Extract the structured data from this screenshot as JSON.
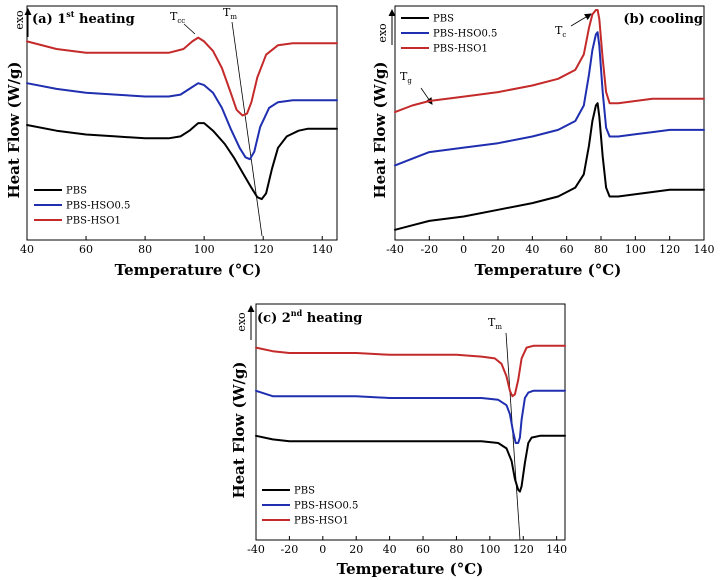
{
  "chart_data": [
    {
      "type": "line",
      "title": "(a) 1st heating",
      "title_main": "(a) 1",
      "title_sup": "st",
      "title_rest": " heating",
      "xlabel": "Temperature (°C)",
      "ylabel": "Heat Flow (W/g)",
      "exo_label": "exo",
      "xlim": [
        40,
        145
      ],
      "xticks": [
        40,
        60,
        80,
        100,
        120,
        140
      ],
      "xtick_labels": [
        "40",
        "60",
        "80",
        "100",
        "120",
        "140"
      ],
      "ylim": [
        0,
        1
      ],
      "legend_position": "bottom-left",
      "series": [
        {
          "name": "PBS",
          "color": "#000000",
          "x": [
            40,
            50,
            60,
            70,
            80,
            88,
            92,
            95,
            98,
            100,
            103,
            107,
            110,
            113,
            116,
            118,
            119.5,
            121,
            123,
            125,
            128,
            132,
            135,
            140,
            145
          ],
          "y": [
            0.5,
            0.47,
            0.45,
            0.44,
            0.43,
            0.43,
            0.44,
            0.47,
            0.51,
            0.51,
            0.47,
            0.4,
            0.33,
            0.25,
            0.17,
            0.12,
            0.11,
            0.14,
            0.27,
            0.38,
            0.44,
            0.47,
            0.48,
            0.48,
            0.48
          ]
        },
        {
          "name": "PBS-HSO0.5",
          "color": "#1f2fb0",
          "x": [
            40,
            50,
            60,
            70,
            80,
            88,
            92,
            95,
            98,
            100,
            103,
            106,
            109,
            112,
            114,
            115.5,
            117,
            119,
            122,
            125,
            130,
            135,
            140,
            145
          ],
          "y": [
            0.72,
            0.69,
            0.67,
            0.66,
            0.65,
            0.65,
            0.66,
            0.69,
            0.72,
            0.71,
            0.67,
            0.59,
            0.48,
            0.38,
            0.33,
            0.32,
            0.36,
            0.49,
            0.59,
            0.62,
            0.63,
            0.63,
            0.63,
            0.63
          ]
        },
        {
          "name": "PBS-HSO1",
          "color": "#c42a2a",
          "x": [
            40,
            50,
            60,
            70,
            80,
            88,
            93,
            96,
            98,
            100,
            103,
            106,
            109,
            111,
            113,
            114.5,
            116,
            118,
            121,
            125,
            130,
            135,
            140,
            145
          ],
          "y": [
            0.94,
            0.9,
            0.88,
            0.88,
            0.88,
            0.88,
            0.9,
            0.94,
            0.96,
            0.94,
            0.89,
            0.8,
            0.67,
            0.58,
            0.55,
            0.56,
            0.62,
            0.75,
            0.87,
            0.92,
            0.93,
            0.93,
            0.93,
            0.93
          ]
        }
      ],
      "annotations": [
        {
          "label": "T",
          "sub": "cc"
        },
        {
          "label": "T",
          "sub": "m"
        }
      ]
    },
    {
      "type": "line",
      "title": "(b) cooling",
      "xlabel": "Temperature (°C)",
      "ylabel": "Heat Flow (W/g)",
      "exo_label": "exo",
      "xlim": [
        -40,
        140
      ],
      "xticks": [
        -40,
        -20,
        0,
        20,
        40,
        60,
        80,
        100,
        120,
        140
      ],
      "xtick_labels": [
        "-40",
        "-20",
        "0",
        "20",
        "40",
        "60",
        "80",
        "100",
        "120",
        "140"
      ],
      "ylim": [
        0,
        1
      ],
      "legend_position": "top-left",
      "series": [
        {
          "name": "PBS",
          "color": "#000000",
          "x": [
            -40,
            -30,
            -20,
            0,
            20,
            40,
            55,
            65,
            70,
            73,
            75,
            77,
            78,
            79,
            81,
            83,
            85,
            90,
            100,
            110,
            120,
            130,
            140
          ],
          "y": [
            0.01,
            0.03,
            0.05,
            0.07,
            0.1,
            0.13,
            0.16,
            0.2,
            0.26,
            0.39,
            0.5,
            0.57,
            0.58,
            0.52,
            0.34,
            0.2,
            0.16,
            0.16,
            0.17,
            0.18,
            0.19,
            0.19,
            0.19
          ]
        },
        {
          "name": "PBS-HSO0.5",
          "color": "#1f2fb0",
          "x": [
            -40,
            -30,
            -20,
            0,
            20,
            40,
            55,
            65,
            70,
            73,
            75,
            77,
            78,
            79,
            81,
            83,
            85,
            90,
            100,
            110,
            120,
            130,
            140
          ],
          "y": [
            0.3,
            0.33,
            0.36,
            0.38,
            0.4,
            0.43,
            0.46,
            0.5,
            0.57,
            0.71,
            0.82,
            0.89,
            0.9,
            0.84,
            0.63,
            0.47,
            0.43,
            0.43,
            0.44,
            0.45,
            0.46,
            0.46,
            0.46
          ]
        },
        {
          "name": "PBS-HSO1",
          "color": "#c42a2a",
          "x": [
            -40,
            -30,
            -20,
            0,
            20,
            40,
            55,
            65,
            70,
            73,
            75,
            77,
            78,
            79,
            81,
            83,
            85,
            90,
            100,
            110,
            120,
            130,
            140
          ],
          "y": [
            0.54,
            0.57,
            0.59,
            0.61,
            0.63,
            0.66,
            0.69,
            0.73,
            0.8,
            0.92,
            0.98,
            1.0,
            1.0,
            0.96,
            0.78,
            0.63,
            0.58,
            0.58,
            0.59,
            0.6,
            0.6,
            0.6,
            0.6
          ]
        }
      ],
      "annotations": [
        {
          "label": "T",
          "sub": "c"
        },
        {
          "label": "T",
          "sub": "g"
        }
      ]
    },
    {
      "type": "line",
      "title": "(c) 2nd heating",
      "title_main": "(c) 2",
      "title_sup": "nd",
      "title_rest": " heating",
      "xlabel": "Temperature (°C)",
      "ylabel": "Heat Flow (W/g)",
      "exo_label": "exo",
      "xlim": [
        -40,
        145
      ],
      "xticks": [
        -40,
        -20,
        0,
        20,
        40,
        60,
        80,
        100,
        120,
        140
      ],
      "xtick_labels": [
        "-40",
        "-20",
        "0",
        "20",
        "40",
        "60",
        "80",
        "100",
        "120",
        "140"
      ],
      "ylim": [
        0,
        1
      ],
      "legend_position": "bottom-left",
      "series": [
        {
          "name": "PBS",
          "color": "#000000",
          "x": [
            -40,
            -30,
            -20,
            0,
            20,
            40,
            60,
            80,
            95,
            105,
            110,
            113,
            115,
            117,
            118,
            119,
            121,
            123,
            125,
            130,
            135,
            140,
            145
          ],
          "y": [
            0.44,
            0.42,
            0.41,
            0.41,
            0.41,
            0.41,
            0.41,
            0.41,
            0.41,
            0.4,
            0.37,
            0.3,
            0.2,
            0.14,
            0.13,
            0.16,
            0.29,
            0.4,
            0.43,
            0.44,
            0.44,
            0.44,
            0.44
          ]
        },
        {
          "name": "PBS-HSO0.5",
          "color": "#1f2fb0",
          "x": [
            -40,
            -30,
            -20,
            0,
            20,
            40,
            60,
            80,
            95,
            105,
            110,
            112,
            114,
            115.5,
            117,
            118,
            119,
            121,
            123,
            126,
            130,
            135,
            140,
            145
          ],
          "y": [
            0.69,
            0.66,
            0.66,
            0.66,
            0.66,
            0.65,
            0.65,
            0.65,
            0.65,
            0.64,
            0.61,
            0.56,
            0.46,
            0.4,
            0.4,
            0.43,
            0.53,
            0.65,
            0.68,
            0.69,
            0.69,
            0.69,
            0.69,
            0.69
          ]
        },
        {
          "name": "PBS-HSO1",
          "color": "#c42a2a",
          "x": [
            -40,
            -30,
            -20,
            0,
            20,
            40,
            60,
            80,
            95,
            103,
            107,
            110,
            112,
            113.5,
            115,
            117,
            119,
            122,
            126,
            130,
            135,
            140,
            145
          ],
          "y": [
            0.93,
            0.91,
            0.9,
            0.9,
            0.9,
            0.89,
            0.89,
            0.89,
            0.88,
            0.87,
            0.84,
            0.77,
            0.69,
            0.66,
            0.67,
            0.75,
            0.87,
            0.93,
            0.94,
            0.94,
            0.94,
            0.94,
            0.94
          ]
        }
      ],
      "annotations": [
        {
          "label": "T",
          "sub": "m"
        }
      ]
    }
  ]
}
